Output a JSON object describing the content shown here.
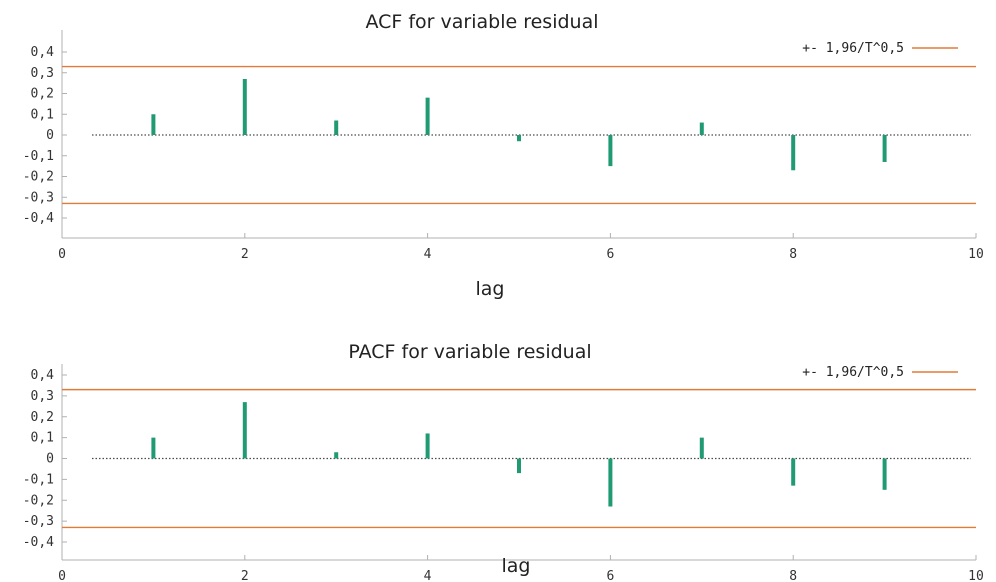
{
  "colors": {
    "bar": "#1f9a73",
    "band": "#e07b39",
    "axis": "#b0b0b0",
    "zero_line": "#4a4a4a"
  },
  "chart_data": [
    {
      "type": "bar",
      "title": "ACF for variable residual",
      "xlabel": "lag",
      "ylabel": "",
      "x": [
        1,
        2,
        3,
        4,
        5,
        6,
        7,
        8,
        9
      ],
      "values": [
        0.1,
        0.27,
        0.07,
        0.18,
        -0.03,
        -0.15,
        0.06,
        -0.17,
        -0.13
      ],
      "xlim": [
        0,
        10
      ],
      "ylim": [
        -0.45,
        0.45
      ],
      "xticks": [
        0,
        2,
        4,
        6,
        8,
        10
      ],
      "xtick_labels": [
        "0",
        "2",
        "4",
        "6",
        "8",
        "10"
      ],
      "yticks": [
        0.4,
        0.3,
        0.2,
        0.1,
        0,
        -0.1,
        -0.2,
        -0.3,
        -0.4
      ],
      "ytick_labels": [
        "0,4",
        "0,3",
        "0,2",
        "0,1",
        "0",
        "-0,1",
        "-0,2",
        "-0,3",
        "-0,4"
      ],
      "confidence_band": 0.33,
      "legend_label": "+- 1,96/T^0,5",
      "legend_position": "top-right",
      "grid": false
    },
    {
      "type": "bar",
      "title": "PACF for variable residual",
      "xlabel": "lag",
      "ylabel": "",
      "x": [
        1,
        2,
        3,
        4,
        5,
        6,
        7,
        8,
        9
      ],
      "values": [
        0.1,
        0.27,
        0.03,
        0.12,
        -0.07,
        -0.23,
        0.1,
        -0.13,
        -0.15
      ],
      "xlim": [
        0,
        10
      ],
      "ylim": [
        -0.45,
        0.45
      ],
      "xticks": [
        0,
        2,
        4,
        6,
        8,
        10
      ],
      "xtick_labels": [
        "0",
        "2",
        "4",
        "6",
        "8",
        "10"
      ],
      "yticks": [
        0.4,
        0.3,
        0.2,
        0.1,
        0,
        -0.1,
        -0.2,
        -0.3,
        -0.4
      ],
      "ytick_labels": [
        "0,4",
        "0,3",
        "0,2",
        "0,1",
        "0",
        "-0,1",
        "-0,2",
        "-0,3",
        "-0,4"
      ],
      "confidence_band": 0.33,
      "legend_label": "+- 1,96/T^0,5",
      "legend_position": "top-right",
      "grid": false
    }
  ]
}
